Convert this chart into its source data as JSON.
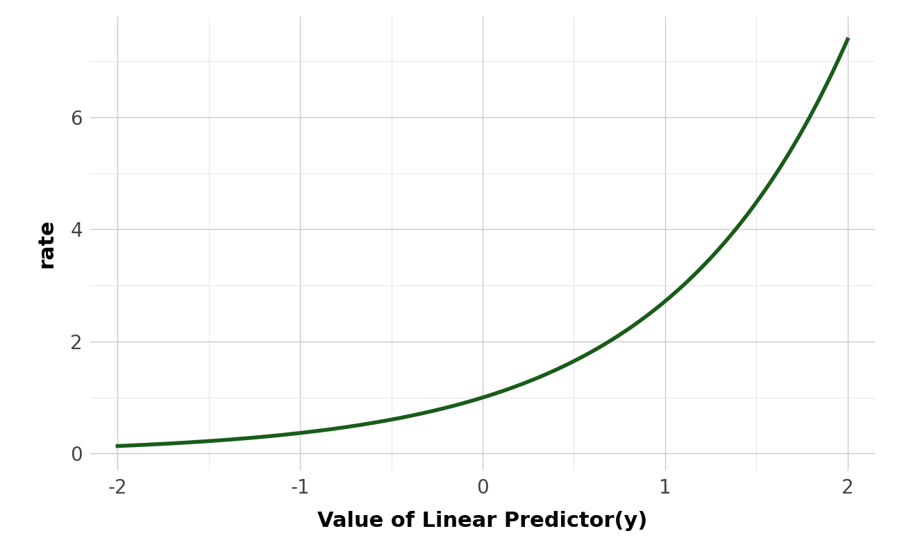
{
  "xlabel": "Value of Linear Predictor(y)",
  "ylabel": "rate",
  "xlim": [
    -2.15,
    2.15
  ],
  "ylim": [
    -0.3,
    7.8
  ],
  "x_ticks": [
    -2,
    -1,
    0,
    1,
    2
  ],
  "y_ticks": [
    0,
    2,
    4,
    6
  ],
  "line_color": "#1a5c1a",
  "line_width": 4.0,
  "background_color": "#ffffff",
  "major_grid_color": "#c8c8c8",
  "minor_grid_color": "#e0e0e0",
  "xlabel_fontsize": 22,
  "ylabel_fontsize": 22,
  "tick_fontsize": 20,
  "tick_color": "#444444",
  "x_start": -2.0,
  "x_end": 2.0
}
